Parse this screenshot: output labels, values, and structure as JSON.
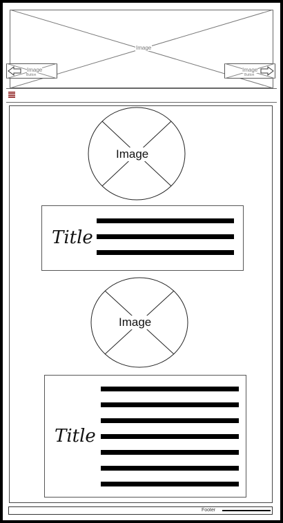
{
  "hero": {
    "image_label": "Image",
    "prev_button": {
      "image_label": "Image",
      "button_label": "Button"
    },
    "next_button": {
      "image_label": "Image",
      "button_label": "Button"
    }
  },
  "menu": {
    "icon": "hamburger-menu-icon",
    "color": "#8b1a1a"
  },
  "cards": [
    {
      "image_label": "Image",
      "title": "Title",
      "text_lines": 3
    },
    {
      "image_label": "Image",
      "title": "Title",
      "text_lines": 7
    }
  ],
  "footer": {
    "label": "Footer"
  }
}
